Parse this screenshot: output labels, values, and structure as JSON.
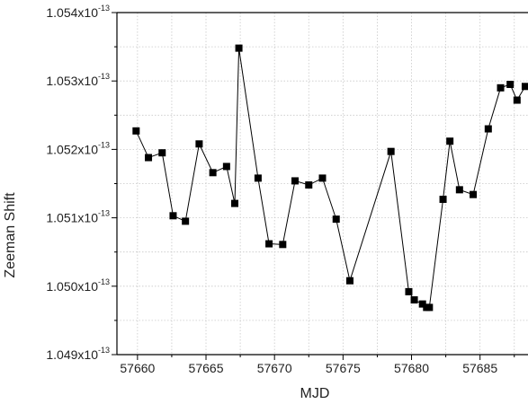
{
  "chart_data": {
    "type": "line",
    "title": "",
    "xlabel": "MJD",
    "ylabel": "Zeeman Shift",
    "xlim": [
      57658.5,
      57688.5
    ],
    "ylim": [
      1.049,
      1.054
    ],
    "y_exponent": "-13",
    "grid": true,
    "x_ticks": [
      57660,
      57665,
      57670,
      57675,
      57680,
      57685
    ],
    "x_tick_labels": [
      "57660",
      "57665",
      "57670",
      "57675",
      "57680",
      "57685"
    ],
    "y_ticks": [
      1.049,
      1.05,
      1.051,
      1.052,
      1.053,
      1.054
    ],
    "y_tick_labels": [
      "1.049x10",
      "1.050x10",
      "1.051x10",
      "1.052x10",
      "1.053x10",
      "1.054x10"
    ],
    "series": [
      {
        "marker": "square",
        "color": "#000000",
        "x": [
          57659.9,
          57660.8,
          57661.8,
          57662.6,
          57663.5,
          57664.5,
          57665.5,
          57666.5,
          57667.1,
          57667.4,
          57668.8,
          57669.6,
          57670.6,
          57671.5,
          57672.5,
          57673.5,
          57674.5,
          57675.5,
          57678.5,
          57679.8,
          57680.2,
          57680.8,
          57681.1,
          57681.3,
          57682.3,
          57682.8,
          57683.5,
          57684.5,
          57685.6,
          57686.5,
          57687.2,
          57687.7,
          57688.3
        ],
        "y": [
          1.05227,
          1.05188,
          1.05195,
          1.05103,
          1.05095,
          1.05208,
          1.05166,
          1.05175,
          1.05121,
          1.05348,
          1.05158,
          1.05062,
          1.05061,
          1.05154,
          1.05148,
          1.05158,
          1.05098,
          1.05008,
          1.05197,
          1.04992,
          1.0498,
          1.04974,
          1.04969,
          1.04969,
          1.05127,
          1.05212,
          1.05141,
          1.05134,
          1.0523,
          1.0529,
          1.05295,
          1.05272,
          1.05292
        ]
      }
    ]
  }
}
